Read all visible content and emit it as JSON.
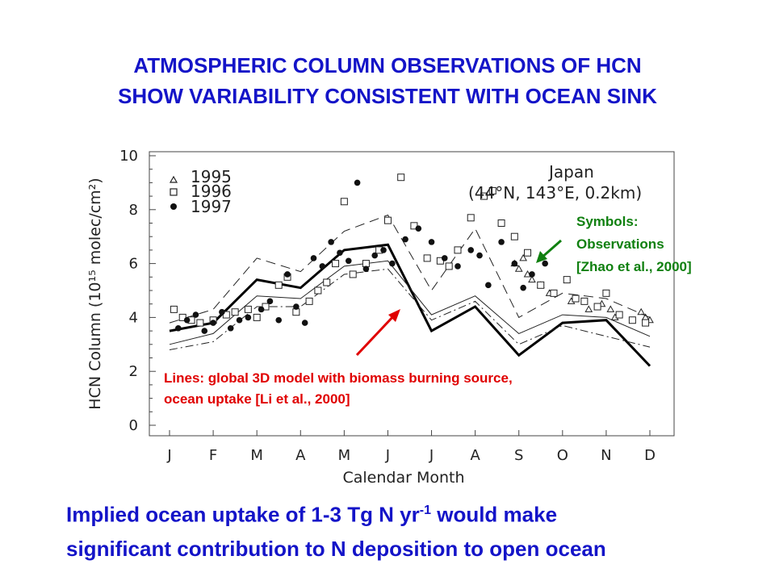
{
  "slide": {
    "title_line1": "ATMOSPHERIC COLUMN OBSERVATIONS OF HCN",
    "title_line2": "SHOW VARIABILITY CONSISTENT WITH OCEAN SINK",
    "footer_line1_pre": "Implied ocean uptake of 1-3 Tg N yr",
    "footer_line1_sup": "-1",
    "footer_line1_post": " would make",
    "footer_line2": "significant contribution to N deposition to open ocean"
  },
  "annotations": {
    "lines_line1": "Lines: global 3D model with biomass burning source,",
    "lines_line2": "ocean uptake [Li et al., 2000]",
    "symbols_line1": "Symbols:",
    "symbols_line2": "Observations",
    "symbols_line3": "[Zhao et al., 2000]",
    "red_color": "#e00000",
    "green_color": "#108010"
  },
  "chart_data": {
    "type": "scatter",
    "xlabel": "Calendar Month",
    "ylabel": "HCN Column (10¹⁵ molec/cm²)",
    "x_ticks": [
      "J",
      "F",
      "M",
      "A",
      "M",
      "J",
      "J",
      "A",
      "S",
      "O",
      "N",
      "D"
    ],
    "y_ticks": [
      "0",
      "2",
      "4",
      "6",
      "8",
      "10"
    ],
    "ylim": [
      0,
      10
    ],
    "xlim": [
      1,
      12
    ],
    "location_line1": "Japan",
    "location_line2": "(44°N, 143°E, 0.2km)",
    "legend": [
      {
        "name": "1995",
        "marker": "triangle"
      },
      {
        "name": "1996",
        "marker": "square"
      },
      {
        "name": "1997",
        "marker": "filled-circle"
      }
    ],
    "series": [
      {
        "name": "1995",
        "marker": "triangle",
        "x": [
          8.9,
          9.0,
          9.1,
          9.2,
          9.3,
          9.5,
          9.7,
          10.2,
          10.6,
          10.9,
          11.1,
          11.2,
          11.8,
          11.9,
          12.0
        ],
        "y": [
          6.0,
          5.8,
          6.2,
          5.6,
          5.4,
          5.2,
          4.9,
          4.6,
          4.3,
          4.5,
          4.3,
          4.0,
          4.2,
          4.0,
          3.9
        ]
      },
      {
        "name": "1996",
        "marker": "square",
        "x": [
          1.1,
          1.3,
          1.5,
          1.7,
          2.0,
          2.3,
          2.5,
          2.8,
          3.0,
          3.2,
          3.5,
          3.7,
          3.9,
          4.2,
          4.4,
          4.6,
          4.8,
          5.0,
          5.2,
          5.5,
          5.8,
          6.0,
          6.3,
          6.6,
          6.9,
          7.2,
          7.4,
          7.6,
          7.9,
          8.2,
          8.4,
          8.6,
          8.9,
          9.2,
          9.5,
          9.8,
          10.1,
          10.3,
          10.5,
          10.8,
          11.0,
          11.3,
          11.6,
          11.9
        ],
        "y": [
          4.3,
          4.0,
          3.9,
          3.8,
          3.9,
          4.1,
          4.2,
          4.3,
          4.0,
          4.4,
          5.2,
          5.5,
          4.2,
          4.6,
          5.0,
          5.3,
          6.0,
          8.3,
          5.6,
          6.0,
          6.5,
          7.6,
          9.2,
          7.4,
          6.2,
          6.1,
          5.9,
          6.5,
          7.7,
          8.5,
          8.7,
          7.5,
          7.0,
          6.4,
          5.2,
          4.9,
          5.4,
          4.7,
          4.6,
          4.4,
          4.9,
          4.1,
          3.9,
          3.8
        ]
      },
      {
        "name": "1997",
        "marker": "filled-circle",
        "x": [
          1.2,
          1.4,
          1.6,
          1.8,
          2.0,
          2.2,
          2.4,
          2.6,
          2.8,
          3.1,
          3.3,
          3.5,
          3.7,
          3.9,
          4.1,
          4.3,
          4.5,
          4.7,
          4.9,
          5.1,
          5.3,
          5.5,
          5.7,
          5.9,
          6.1,
          6.4,
          6.7,
          7.0,
          7.3,
          7.6,
          7.9,
          8.1,
          8.3,
          8.6,
          8.9,
          9.1,
          9.3,
          9.6
        ],
        "y": [
          3.6,
          3.9,
          4.1,
          3.5,
          3.8,
          4.2,
          3.6,
          3.9,
          4.0,
          4.3,
          4.6,
          3.9,
          5.6,
          4.4,
          3.8,
          6.2,
          5.9,
          6.8,
          6.4,
          6.1,
          9.0,
          5.8,
          6.3,
          6.5,
          6.0,
          6.9,
          7.3,
          6.8,
          6.2,
          5.9,
          6.5,
          6.3,
          5.2,
          6.8,
          6.0,
          5.1,
          5.6,
          6.0
        ]
      }
    ],
    "model_lines": [
      {
        "style": "solid-thick",
        "x": [
          1,
          2,
          3,
          4,
          5,
          6,
          7,
          8,
          9,
          10,
          11,
          12
        ],
        "y": [
          3.5,
          3.8,
          5.4,
          5.1,
          6.5,
          6.7,
          3.5,
          4.4,
          2.6,
          3.8,
          3.9,
          2.2
        ]
      },
      {
        "style": "dashed",
        "x": [
          1,
          2,
          3,
          4,
          5,
          6,
          7,
          8,
          9,
          10,
          11,
          12
        ],
        "y": [
          3.8,
          4.3,
          6.2,
          5.7,
          7.2,
          7.8,
          5.0,
          7.3,
          4.0,
          4.9,
          4.7,
          4.0
        ]
      },
      {
        "style": "solid-thin",
        "x": [
          1,
          2,
          3,
          4,
          5,
          6,
          7,
          8,
          9,
          10,
          11,
          12
        ],
        "y": [
          3.0,
          3.4,
          4.8,
          4.7,
          5.9,
          6.1,
          4.1,
          4.8,
          3.4,
          4.1,
          4.0,
          3.3
        ]
      },
      {
        "style": "dash-dot",
        "x": [
          1,
          2,
          3,
          4,
          5,
          6,
          7,
          8,
          9,
          10,
          11,
          12
        ],
        "y": [
          2.8,
          3.1,
          4.4,
          4.4,
          5.6,
          5.8,
          3.9,
          4.6,
          3.0,
          3.7,
          3.3,
          2.9
        ]
      }
    ]
  }
}
